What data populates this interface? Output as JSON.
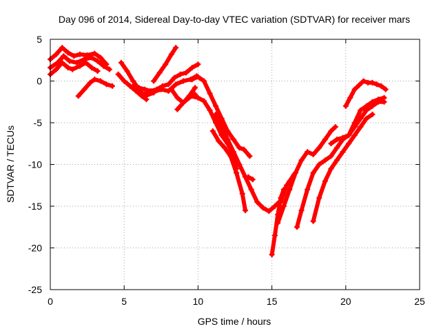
{
  "chart_data": {
    "type": "line",
    "title": "Day 096 of 2014, Sidereal Day-to-day VTEC variation (SDTVAR) for receiver mars",
    "xlabel": "GPS time / hours",
    "ylabel": "SDTVAR / TECUs",
    "xlim": [
      0,
      25
    ],
    "ylim": [
      -25,
      5
    ],
    "xticks": [
      0,
      5,
      10,
      15,
      20,
      25
    ],
    "yticks": [
      -25,
      -20,
      -15,
      -10,
      -5,
      0,
      5
    ],
    "grid": true,
    "legend": "none",
    "marker": "plus",
    "color": "#ff0000",
    "series": [
      {
        "x": [
          0.0,
          0.4,
          0.8,
          1.2,
          1.6,
          2.0,
          2.5,
          3.0,
          3.4,
          3.8
        ],
        "y": [
          2.6,
          3.2,
          4.0,
          3.4,
          3.0,
          3.2,
          3.1,
          3.3,
          2.8,
          2.0
        ]
      },
      {
        "x": [
          0.0,
          0.5,
          0.9,
          1.3,
          1.8,
          2.3,
          2.8,
          3.2,
          3.6,
          4.0
        ],
        "y": [
          1.6,
          2.2,
          3.0,
          2.4,
          2.2,
          2.6,
          2.8,
          2.4,
          1.8,
          1.4
        ]
      },
      {
        "x": [
          0.0,
          0.4,
          0.8,
          1.2,
          1.5,
          2.0,
          2.4,
          2.8,
          3.2
        ],
        "y": [
          0.8,
          1.4,
          2.2,
          1.6,
          1.4,
          1.8,
          2.2,
          1.6,
          1.2
        ]
      },
      {
        "x": [
          1.9,
          2.3,
          2.7,
          3.0,
          3.4,
          3.8,
          4.2
        ],
        "y": [
          -1.8,
          -1.0,
          -0.2,
          0.2,
          0.0,
          -0.4,
          -0.6
        ]
      },
      {
        "x": [
          4.6,
          5.0,
          5.4,
          5.8,
          6.2,
          6.5
        ],
        "y": [
          0.8,
          0.0,
          -0.6,
          -1.2,
          -1.8,
          -2.2
        ]
      },
      {
        "x": [
          4.8,
          5.2,
          5.6,
          6.0,
          6.4,
          7.0
        ],
        "y": [
          2.2,
          1.2,
          0.0,
          -1.0,
          -1.8,
          -1.4
        ]
      },
      {
        "x": [
          7.0,
          7.4,
          7.8,
          8.2,
          8.5
        ],
        "y": [
          0.0,
          1.0,
          2.0,
          3.2,
          4.0
        ]
      },
      {
        "x": [
          5.6,
          6.0,
          6.4,
          6.8,
          7.2,
          7.6,
          8.0,
          8.4,
          8.8,
          9.2,
          9.6,
          10.0
        ],
        "y": [
          -0.6,
          -0.8,
          -1.0,
          -1.2,
          -1.0,
          -0.6,
          -0.4,
          0.4,
          0.8,
          1.0,
          1.6,
          2.0
        ]
      },
      {
        "x": [
          6.0,
          6.5,
          7.0,
          7.5,
          8.0,
          8.5,
          9.0,
          9.5,
          9.9
        ],
        "y": [
          -1.4,
          -1.6,
          -1.3,
          -1.0,
          -1.2,
          -0.4,
          0.0,
          0.2,
          0.6
        ]
      },
      {
        "x": [
          8.2,
          8.6,
          9.0,
          9.4,
          9.8
        ],
        "y": [
          -1.0,
          -2.0,
          -2.6,
          -1.8,
          -0.8
        ]
      },
      {
        "x": [
          8.6,
          9.0,
          9.4,
          9.8
        ],
        "y": [
          -3.4,
          -2.6,
          -2.0,
          -1.6
        ]
      },
      {
        "x": [
          9.6,
          10.0,
          10.4,
          10.8,
          11.2,
          11.6,
          12.0,
          12.4,
          12.8,
          13.1,
          13.5
        ],
        "y": [
          0.2,
          0.5,
          0.0,
          -1.5,
          -3.0,
          -4.5,
          -6.0,
          -7.0,
          -8.0,
          -8.2,
          -9.0
        ]
      },
      {
        "x": [
          9.5,
          10.0,
          10.4,
          10.8,
          11.2,
          11.6,
          12.0,
          12.4,
          12.6
        ],
        "y": [
          -1.8,
          -2.0,
          -2.4,
          -3.5,
          -5.0,
          -6.5,
          -7.5,
          -8.8,
          -10.5
        ]
      },
      {
        "x": [
          11.0,
          11.4,
          11.8,
          12.2,
          12.6,
          13.0,
          13.2
        ],
        "y": [
          -6.0,
          -7.2,
          -8.0,
          -9.0,
          -11.0,
          -13.5,
          -15.5
        ]
      },
      {
        "x": [
          11.2,
          11.6,
          12.0,
          12.4,
          12.8,
          13.2,
          13.6,
          14.0,
          14.4,
          14.8,
          15.2,
          15.5
        ],
        "y": [
          -4.0,
          -5.5,
          -7.0,
          -8.5,
          -10.0,
          -11.5,
          -13.0,
          -14.5,
          -15.2,
          -15.6,
          -15.0,
          -14.5
        ]
      },
      {
        "x": [
          13.4,
          13.7
        ],
        "y": [
          -11.5,
          -11.8
        ]
      },
      {
        "x": [
          15.0,
          15.2,
          15.4,
          15.6,
          15.8
        ],
        "y": [
          -20.8,
          -18.5,
          -16.0,
          -14.0,
          -13.0
        ]
      },
      {
        "x": [
          15.6,
          15.8,
          16.0,
          16.2,
          16.5
        ],
        "y": [
          -14.5,
          -13.5,
          -12.5,
          -12.0,
          -11.2
        ]
      },
      {
        "x": [
          15.4,
          15.8,
          16.2,
          16.6,
          17.0,
          17.4,
          17.8,
          18.2,
          18.6,
          19.0,
          19.3
        ],
        "y": [
          -17.0,
          -15.0,
          -13.0,
          -11.0,
          -9.5,
          -8.5,
          -8.8,
          -8.0,
          -7.0,
          -6.0,
          -5.5
        ]
      },
      {
        "x": [
          16.7,
          17.0,
          17.4,
          17.8,
          18.2,
          18.6,
          19.0,
          19.4,
          19.8,
          20.2,
          20.6,
          21.0,
          21.4,
          21.8,
          22.2,
          22.6
        ],
        "y": [
          -17.5,
          -15.5,
          -13.0,
          -11.0,
          -10.0,
          -9.5,
          -9.0,
          -8.0,
          -7.0,
          -6.5,
          -5.5,
          -4.5,
          -3.5,
          -3.0,
          -2.5,
          -2.5
        ]
      },
      {
        "x": [
          17.8,
          18.2,
          18.6,
          19.0,
          19.4,
          19.8,
          20.2,
          20.6,
          21.0,
          21.4,
          21.8
        ],
        "y": [
          -16.8,
          -14.0,
          -12.0,
          -10.5,
          -9.5,
          -8.5,
          -7.5,
          -6.5,
          -5.5,
          -4.5,
          -4.0
        ]
      },
      {
        "x": [
          19.0,
          19.4,
          19.8,
          20.2,
          20.6,
          21.0,
          21.4,
          21.8,
          22.2,
          22.6
        ],
        "y": [
          -7.5,
          -7.0,
          -6.8,
          -6.5,
          -5.0,
          -3.5,
          -3.0,
          -2.5,
          -2.2,
          -2.0
        ]
      },
      {
        "x": [
          20.0,
          20.3,
          20.6,
          20.9,
          21.2,
          21.5,
          21.8,
          22.1,
          22.4,
          22.7
        ],
        "y": [
          -3.0,
          -2.0,
          -1.0,
          -0.5,
          0.0,
          -0.2,
          -0.2,
          -0.4,
          -0.6,
          -1.0
        ]
      }
    ]
  }
}
